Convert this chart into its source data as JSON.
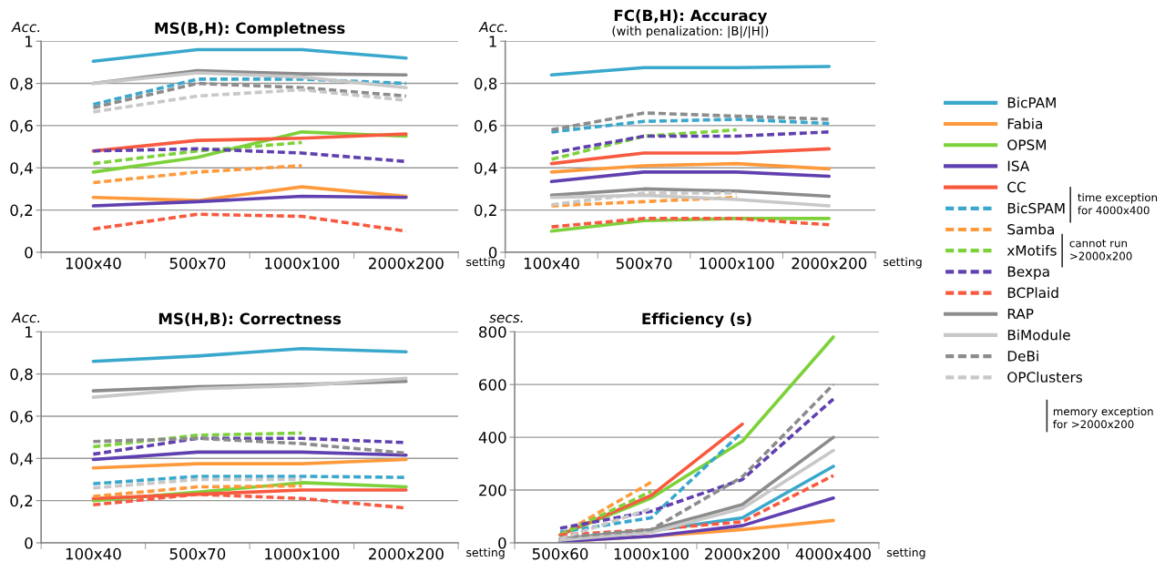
{
  "chart_data": [
    {
      "type": "line",
      "title": "MS(B,H): Completness",
      "xlabel": "setting",
      "ylabel": "Acc.",
      "categories": [
        "100x40",
        "500x70",
        "1000x100",
        "2000x200"
      ],
      "ylim": [
        0,
        1
      ],
      "yticks": [
        0,
        {
          "value": 0.2,
          "label": "0,2"
        },
        {
          "value": 0.4,
          "label": "0,4"
        },
        {
          "value": 0.6,
          "label": "0,6"
        },
        {
          "value": 0.8,
          "label": "0,8"
        },
        1
      ],
      "grid": "y",
      "series": [
        {
          "color": "#3aa8cc",
          "values": [
            0.905,
            0.96,
            0.96,
            0.92
          ]
        },
        {
          "color": "#ff9a3c",
          "values": [
            0.26,
            0.245,
            0.31,
            0.265
          ]
        },
        {
          "color": "#7dd13a",
          "values": [
            0.38,
            0.45,
            0.57,
            0.55
          ]
        },
        {
          "color": "#6040b0",
          "values": [
            0.22,
            0.24,
            0.265,
            0.26
          ]
        },
        {
          "color": "#f85a40",
          "values": [
            0.48,
            0.53,
            0.54,
            0.56
          ]
        },
        {
          "color": "#3aa8cc",
          "line_style": "dashed",
          "values": [
            0.7,
            0.82,
            0.82,
            0.8
          ]
        },
        {
          "color": "#ff9a3c",
          "line_style": "dashed",
          "values": [
            0.33,
            0.38,
            0.41,
            null
          ]
        },
        {
          "color": "#7dd13a",
          "line_style": "dashed",
          "values": [
            0.42,
            0.48,
            0.52,
            null
          ]
        },
        {
          "color": "#6040b0",
          "line_style": "dashed",
          "values": [
            0.48,
            0.49,
            0.47,
            0.43
          ]
        },
        {
          "color": "#f85a40",
          "line_style": "dashed",
          "values": [
            0.11,
            0.18,
            0.17,
            0.1
          ]
        },
        {
          "color": "#8c8c8c",
          "values": [
            0.8,
            0.86,
            0.845,
            0.84
          ]
        },
        {
          "color": "#c8c8c8",
          "values": [
            0.8,
            0.85,
            0.83,
            0.78
          ]
        },
        {
          "color": "#8c8c8c",
          "line_style": "dashed",
          "values": [
            0.685,
            0.8,
            0.78,
            0.74
          ]
        },
        {
          "color": "#c8c8c8",
          "line_style": "dashed",
          "values": [
            0.665,
            0.74,
            0.77,
            0.72
          ]
        }
      ]
    },
    {
      "type": "line",
      "title": "FC(B,H): Accuracy",
      "subtitle": "(with penalization: |B|/|H|)",
      "xlabel": "setting",
      "ylabel": "Acc.",
      "categories": [
        "100x40",
        "500x70",
        "1000x100",
        "2000x200"
      ],
      "ylim": [
        0,
        1
      ],
      "yticks": [
        0,
        {
          "value": 0.2,
          "label": "0,2"
        },
        {
          "value": 0.4,
          "label": "0,4"
        },
        {
          "value": 0.6,
          "label": "0,6"
        },
        {
          "value": 0.8,
          "label": "0,8"
        },
        1
      ],
      "grid": "y",
      "legend": "right",
      "annotations": [
        "time exception\nfor 4000x400",
        "cannot run\n>2000x200",
        "memory exception\nfor >2000x200"
      ],
      "series": [
        {
          "name": "BicPAM",
          "color": "#3aa8cc",
          "values": [
            0.84,
            0.875,
            0.875,
            0.88
          ]
        },
        {
          "name": "Fabia",
          "color": "#ff9a3c",
          "values": [
            0.38,
            0.41,
            0.42,
            0.395
          ]
        },
        {
          "name": "OPSM",
          "color": "#7dd13a",
          "values": [
            0.1,
            0.15,
            0.16,
            0.16
          ]
        },
        {
          "name": "ISA",
          "color": "#6040b0",
          "values": [
            0.335,
            0.38,
            0.38,
            0.36
          ]
        },
        {
          "name": "CC",
          "color": "#f85a40",
          "values": [
            0.42,
            0.47,
            0.47,
            0.49
          ]
        },
        {
          "name": "BicSPAM",
          "color": "#3aa8cc",
          "line_style": "dashed",
          "values": [
            0.57,
            0.62,
            0.63,
            0.61
          ]
        },
        {
          "name": "Samba",
          "color": "#ff9a3c",
          "line_style": "dashed",
          "values": [
            0.22,
            0.24,
            0.26,
            null
          ]
        },
        {
          "name": "xMotifs",
          "color": "#7dd13a",
          "line_style": "dashed",
          "values": [
            0.44,
            0.55,
            0.58,
            null
          ]
        },
        {
          "name": "Bexpa",
          "color": "#6040b0",
          "line_style": "dashed",
          "values": [
            0.47,
            0.55,
            0.55,
            0.57
          ]
        },
        {
          "name": "BCPlaid",
          "color": "#f85a40",
          "line_style": "dashed",
          "values": [
            0.12,
            0.16,
            0.16,
            0.13
          ]
        },
        {
          "name": "RAP",
          "color": "#8c8c8c",
          "values": [
            0.27,
            0.3,
            0.29,
            0.265
          ]
        },
        {
          "name": "BiModule",
          "color": "#c8c8c8",
          "values": [
            0.26,
            0.27,
            0.25,
            0.22
          ]
        },
        {
          "name": "DeBi",
          "color": "#8c8c8c",
          "line_style": "dashed",
          "values": [
            0.58,
            0.66,
            0.645,
            0.63
          ]
        },
        {
          "name": "OPClusters",
          "color": "#c8c8c8",
          "line_style": "dashed",
          "values": [
            0.225,
            0.28,
            0.28,
            null
          ]
        }
      ]
    },
    {
      "type": "line",
      "title": "MS(H,B): Correctness",
      "xlabel": "setting",
      "ylabel": "Acc.",
      "categories": [
        "100x40",
        "500x70",
        "1000x100",
        "2000x200"
      ],
      "ylim": [
        0,
        1
      ],
      "yticks": [
        0,
        {
          "value": 0.2,
          "label": "0,2"
        },
        {
          "value": 0.4,
          "label": "0,4"
        },
        {
          "value": 0.6,
          "label": "0,6"
        },
        {
          "value": 0.8,
          "label": "0,8"
        },
        1
      ],
      "grid": "y",
      "series": [
        {
          "color": "#3aa8cc",
          "values": [
            0.86,
            0.885,
            0.92,
            0.905
          ]
        },
        {
          "color": "#ff9a3c",
          "values": [
            0.355,
            0.375,
            0.375,
            0.395
          ]
        },
        {
          "color": "#7dd13a",
          "values": [
            0.2,
            0.24,
            0.285,
            0.265
          ]
        },
        {
          "color": "#6040b0",
          "values": [
            0.395,
            0.43,
            0.43,
            0.415
          ]
        },
        {
          "color": "#f85a40",
          "values": [
            0.21,
            0.23,
            0.25,
            0.25
          ]
        },
        {
          "color": "#3aa8cc",
          "line_style": "dashed",
          "values": [
            0.28,
            0.315,
            0.315,
            0.31
          ]
        },
        {
          "color": "#ff9a3c",
          "line_style": "dashed",
          "values": [
            0.22,
            0.265,
            0.27,
            null
          ]
        },
        {
          "color": "#7dd13a",
          "line_style": "dashed",
          "values": [
            0.455,
            0.51,
            0.52,
            null
          ]
        },
        {
          "color": "#6040b0",
          "line_style": "dashed",
          "values": [
            0.42,
            0.495,
            0.495,
            0.475
          ]
        },
        {
          "color": "#f85a40",
          "line_style": "dashed",
          "values": [
            0.18,
            0.23,
            0.21,
            0.165
          ]
        },
        {
          "color": "#8c8c8c",
          "values": [
            0.72,
            0.74,
            0.75,
            0.765
          ]
        },
        {
          "color": "#c8c8c8",
          "values": [
            0.69,
            0.73,
            0.745,
            0.78
          ]
        },
        {
          "color": "#8c8c8c",
          "line_style": "dashed",
          "values": [
            0.48,
            0.495,
            0.47,
            0.425
          ]
        },
        {
          "color": "#c8c8c8",
          "line_style": "dashed",
          "values": [
            0.26,
            0.3,
            0.3,
            null
          ]
        }
      ]
    },
    {
      "type": "line",
      "title": "Efficiency (s)",
      "xlabel": "setting",
      "ylabel": "secs.",
      "categories": [
        "500x60",
        "1000x100",
        "2000x200",
        "4000x400"
      ],
      "ylim": [
        0,
        800
      ],
      "yticks": [
        0,
        200,
        400,
        600,
        800
      ],
      "grid": "y",
      "series": [
        {
          "color": "#3aa8cc",
          "values": [
            10,
            45,
            95,
            290
          ]
        },
        {
          "color": "#ff9a3c",
          "values": [
            5,
            25,
            50,
            85
          ]
        },
        {
          "color": "#7dd13a",
          "values": [
            30,
            170,
            385,
            780
          ]
        },
        {
          "color": "#6040b0",
          "values": [
            5,
            25,
            65,
            170
          ]
        },
        {
          "color": "#f85a40",
          "values": [
            30,
            180,
            450,
            null
          ]
        },
        {
          "color": "#3aa8cc",
          "line_style": "dashed",
          "values": [
            40,
            95,
            420,
            null
          ]
        },
        {
          "color": "#ff9a3c",
          "line_style": "dashed",
          "values": [
            30,
            230,
            null,
            null
          ]
        },
        {
          "color": "#7dd13a",
          "line_style": "dashed",
          "values": [
            30,
            195,
            null,
            null
          ]
        },
        {
          "color": "#6040b0",
          "line_style": "dashed",
          "values": [
            55,
            120,
            240,
            545
          ]
        },
        {
          "color": "#f85a40",
          "line_style": "dashed",
          "values": [
            30,
            50,
            80,
            255
          ]
        },
        {
          "color": "#8c8c8c",
          "values": [
            15,
            50,
            145,
            400
          ]
        },
        {
          "color": "#c8c8c8",
          "values": [
            10,
            40,
            130,
            350
          ]
        },
        {
          "color": "#8c8c8c",
          "line_style": "dashed",
          "values": [
            20,
            50,
            250,
            600
          ]
        },
        {
          "color": "#c8c8c8",
          "line_style": "dashed",
          "values": [
            15,
            130,
            null,
            null
          ]
        }
      ]
    }
  ]
}
